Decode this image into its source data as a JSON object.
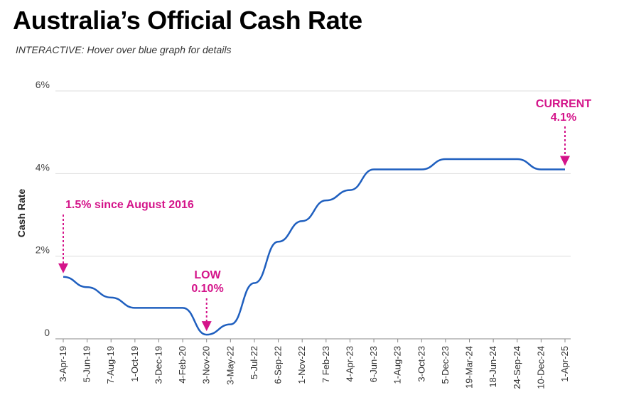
{
  "header": {
    "title": "Australia’s Official Cash Rate",
    "subtitle": "INTERACTIVE: Hover over blue graph for details"
  },
  "colors": {
    "line": "#1f5fbf",
    "annotation": "#d4148a",
    "grid": "#dddddd"
  },
  "chart_data": {
    "type": "line",
    "title": "Australia’s Official Cash Rate",
    "xlabel": "",
    "ylabel": "Cash Rate",
    "ylim": [
      0,
      6
    ],
    "yticks": [
      {
        "value": 0,
        "label": "0"
      },
      {
        "value": 2,
        "label": "2%"
      },
      {
        "value": 4,
        "label": "4%"
      },
      {
        "value": 6,
        "label": "6%"
      }
    ],
    "categories": [
      "3-Apr-19",
      "5-Jun-19",
      "7-Aug-19",
      "1-Oct-19",
      "3-Dec-19",
      "4-Feb-20",
      "3-Nov-20",
      "3-May-22",
      "5-Jul-22",
      "6-Sep-22",
      "1-Nov-22",
      "7 Feb-23",
      "4-Apr-23",
      "6-Jun-23",
      "1-Aug-23",
      "3-Oct-23",
      "5-Dec-23",
      "19-Mar-24",
      "18-Jun-24",
      "24-Sep-24",
      "10-Dec-24",
      "1-Apr-25"
    ],
    "series": [
      {
        "name": "Cash Rate",
        "values": [
          1.5,
          1.25,
          1.0,
          0.75,
          0.75,
          0.75,
          0.1,
          0.35,
          1.35,
          2.35,
          2.85,
          3.35,
          3.6,
          4.1,
          4.1,
          4.1,
          4.35,
          4.35,
          4.35,
          4.35,
          4.1,
          4.1
        ]
      }
    ],
    "annotations": [
      {
        "lines": [
          "1.5% since August 2016"
        ],
        "category": "3-Apr-19",
        "value": 1.5
      },
      {
        "lines": [
          "LOW",
          "0.10%"
        ],
        "category": "3-Nov-20",
        "value": 0.1
      },
      {
        "lines": [
          "CURRENT",
          "4.1%"
        ],
        "category": "1-Apr-25",
        "value": 4.1
      }
    ]
  }
}
